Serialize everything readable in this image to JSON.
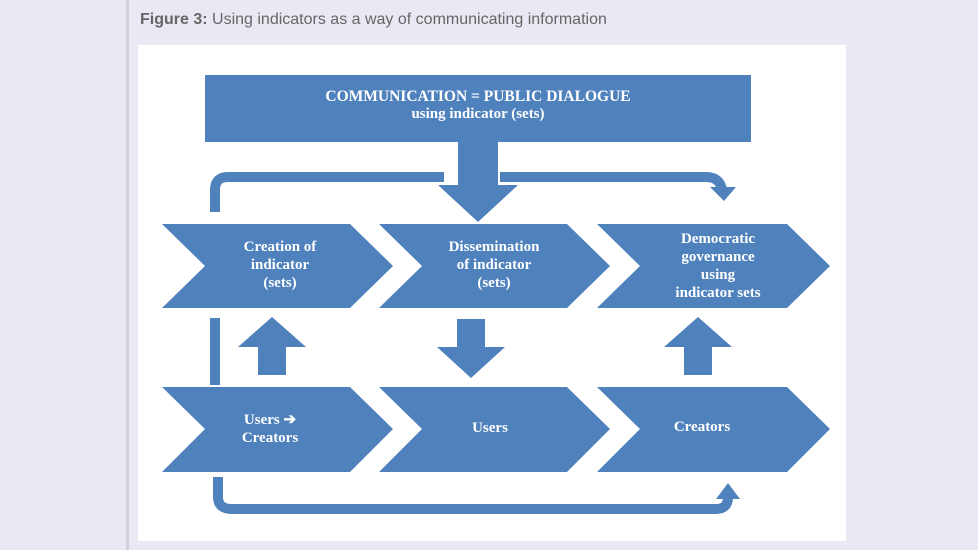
{
  "caption": {
    "label": "Figure 3:",
    "text": "Using indicators as a way of communicating information"
  },
  "colors": {
    "shape_fill": "#4f81bd",
    "background": "#e9e9f4",
    "panel": "#ffffff",
    "caption_text": "#666666"
  },
  "diagram": {
    "header": {
      "line1": "COMMUNICATION = PUBLIC DIALOGUE",
      "line2": "using indicator (sets)"
    },
    "top_row": [
      {
        "lines": [
          "Creation of",
          "indicator",
          "(sets)"
        ]
      },
      {
        "lines": [
          "Dissemination",
          "of indicator",
          "(sets)"
        ]
      },
      {
        "lines": [
          "Democratic",
          "governance",
          "using",
          "indicator sets"
        ]
      }
    ],
    "bottom_row": [
      {
        "lines": [
          "Users ➔",
          "Creators"
        ]
      },
      {
        "lines": [
          "Users"
        ]
      },
      {
        "lines": [
          "Creators"
        ]
      }
    ],
    "vertical_arrows": [
      "up",
      "down",
      "up"
    ]
  }
}
